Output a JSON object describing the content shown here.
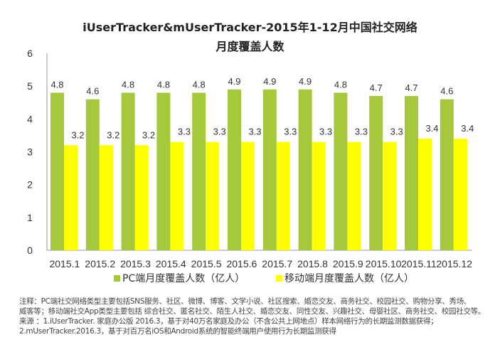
{
  "chart_data": {
    "type": "bar",
    "title": "iUserTracker&mUserTracker-2015年1-12月中国社交网络",
    "subtitle": "月度覆盖人数",
    "categories": [
      "2015.1",
      "2015.2",
      "2015.3",
      "2015.4",
      "2015.5",
      "2015.6",
      "2015.7",
      "2015.8",
      "2015.9",
      "2015.10",
      "2015.11",
      "2015.12"
    ],
    "series": [
      {
        "name": "PC端月度覆盖人数（亿人）",
        "color": "#a6c83c",
        "values": [
          4.8,
          4.6,
          4.8,
          4.8,
          4.8,
          4.9,
          4.9,
          4.9,
          4.8,
          4.7,
          4.7,
          4.6
        ]
      },
      {
        "name": "移动端月度覆盖人数（亿人）",
        "color": "#ffff00",
        "values": [
          3.2,
          3.2,
          3.2,
          3.3,
          3.3,
          3.3,
          3.3,
          3.3,
          3.3,
          3.3,
          3.4,
          3.4
        ]
      }
    ],
    "ylim": [
      0,
      6
    ],
    "yticks": [
      "0",
      "1",
      "2",
      "3",
      "4",
      "5",
      "6"
    ],
    "grid": false,
    "legend": "bottom"
  },
  "notes": [
    "注释：PC端社交网络类型主要包括SNS服务、社区、微博、博客、文学小说、社区搜索、婚恋交友、商务社交、校园社交、购物分享、秀场、",
    "威客等；移动端社交App类型主要包括 综合社交、匿名社交、陌生人社交、婚恋交友、同性交友、兴趣社交、母婴社区、商务社交、校园社交等。",
    "来源 ：1.iUserTracker. 家庭办公版 2016.3，基于对40万名家庭及办公（不含公共上网地点）样本网络行为的长期监测数据获得；",
    "2.mUserTracker.2016.3，基于对百万名iOS和Android系统的智能终端用户使用行为长期监测获得"
  ]
}
